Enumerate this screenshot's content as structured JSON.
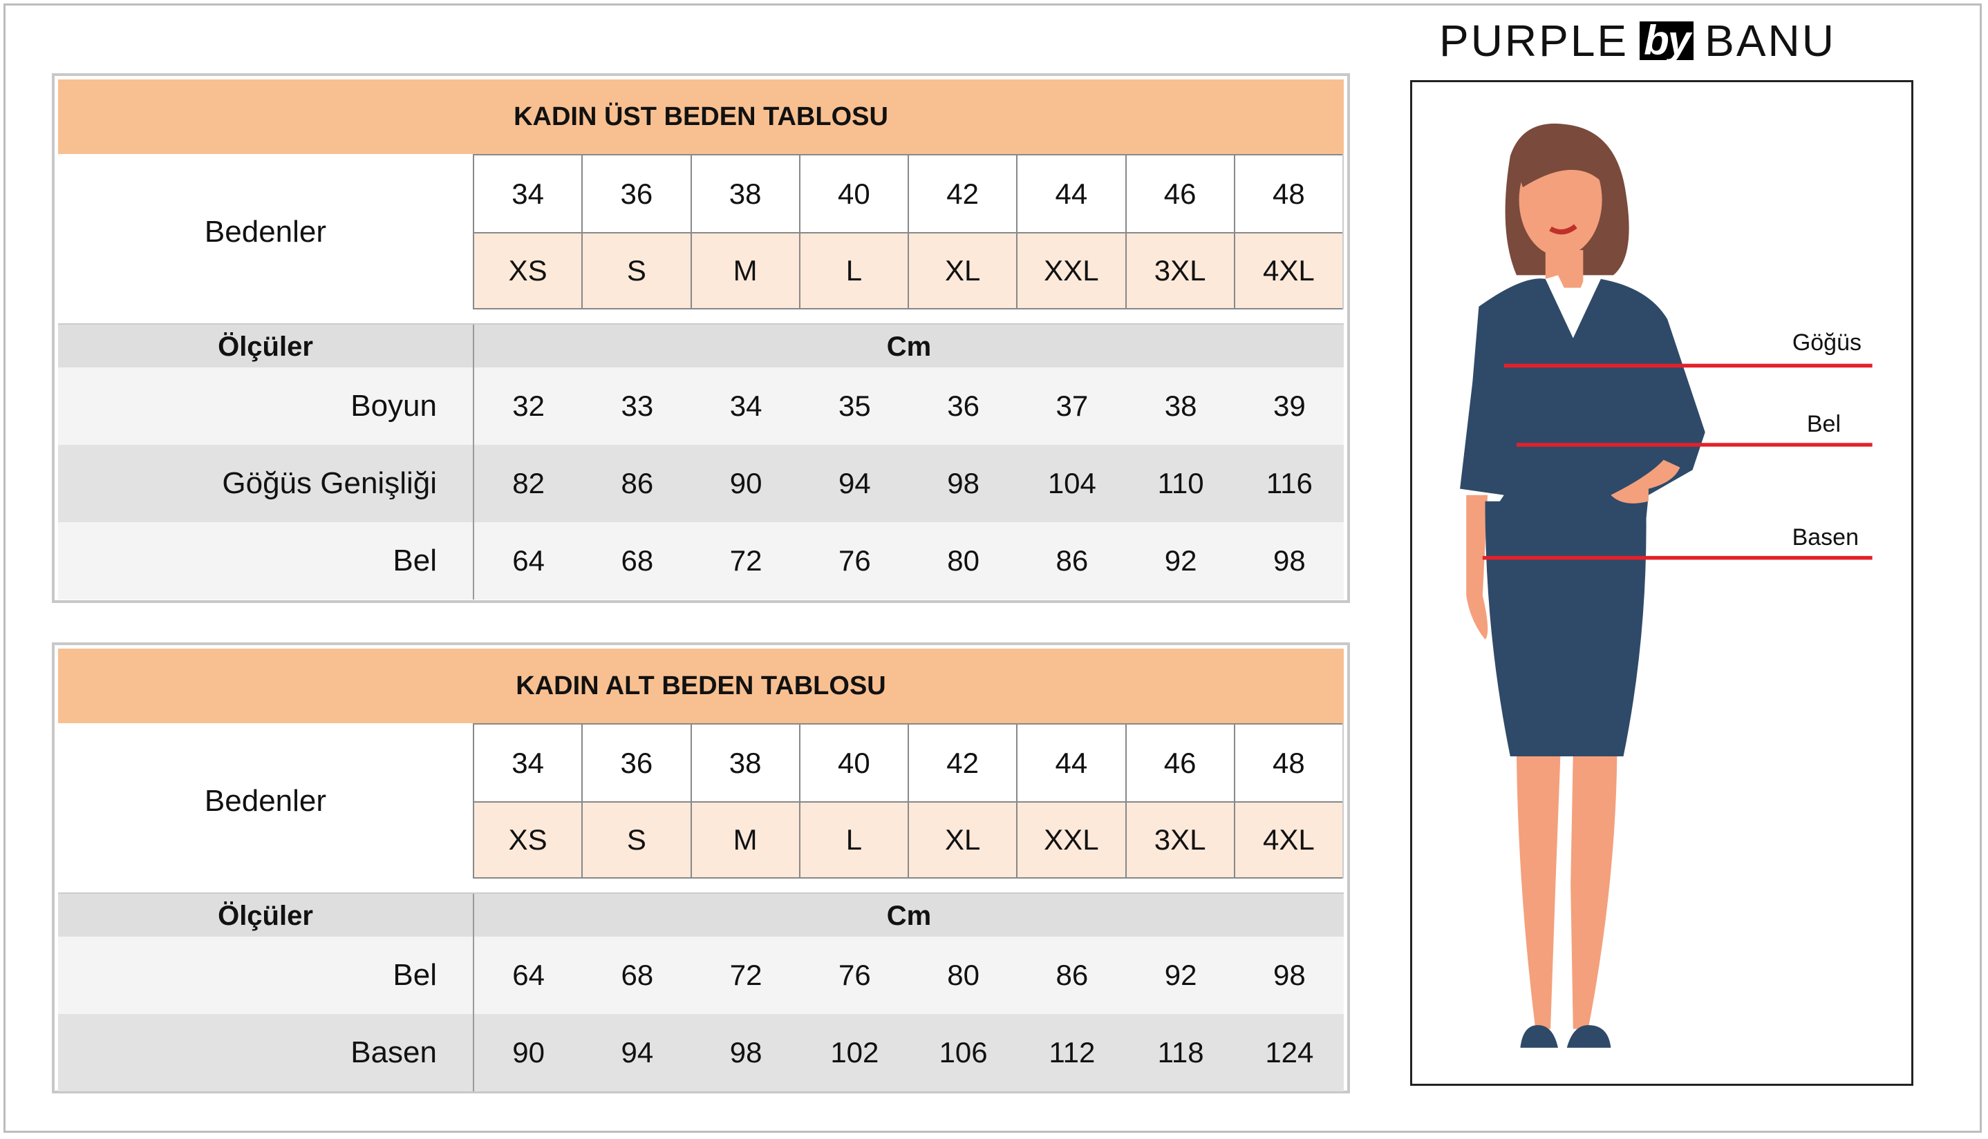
{
  "brand": {
    "left": "PURPLE",
    "mid": "by",
    "right": "BANU"
  },
  "upper_table": {
    "title": "KADIN ÜST BEDEN TABLOSU",
    "sizes_label": "Bedenler",
    "numeric_sizes": [
      "34",
      "36",
      "38",
      "40",
      "42",
      "44",
      "46",
      "48"
    ],
    "letter_sizes": [
      "XS",
      "S",
      "M",
      "L",
      "XL",
      "XXL",
      "3XL",
      "4XL"
    ],
    "measures_label": "Ölçüler",
    "unit": "Cm",
    "rows": [
      {
        "label": "Boyun",
        "values": [
          "32",
          "33",
          "34",
          "35",
          "36",
          "37",
          "38",
          "39"
        ]
      },
      {
        "label": "Göğüs Genişliği",
        "values": [
          "82",
          "86",
          "90",
          "94",
          "98",
          "104",
          "110",
          "116"
        ]
      },
      {
        "label": "Bel",
        "values": [
          "64",
          "68",
          "72",
          "76",
          "80",
          "86",
          "92",
          "98"
        ]
      }
    ]
  },
  "lower_table": {
    "title": "KADIN ALT BEDEN TABLOSU",
    "sizes_label": "Bedenler",
    "numeric_sizes": [
      "34",
      "36",
      "38",
      "40",
      "42",
      "44",
      "46",
      "48"
    ],
    "letter_sizes": [
      "XS",
      "S",
      "M",
      "L",
      "XL",
      "XXL",
      "3XL",
      "4XL"
    ],
    "measures_label": "Ölçüler",
    "unit": "Cm",
    "rows": [
      {
        "label": "Bel",
        "values": [
          "64",
          "68",
          "72",
          "76",
          "80",
          "86",
          "92",
          "98"
        ]
      },
      {
        "label": "Basen",
        "values": [
          "90",
          "94",
          "98",
          "102",
          "106",
          "112",
          "118",
          "124"
        ]
      }
    ]
  },
  "figure": {
    "labels": {
      "chest": "Göğüs",
      "waist": "Bel",
      "hip": "Basen"
    },
    "colors": {
      "line": "#e4202a",
      "suit": "#2f4a68",
      "skin": "#f4a07c",
      "hair": "#7a4a3c"
    }
  },
  "colors": {
    "header": "#f8c091",
    "letter_row": "#fde9da",
    "measure_header": "#dedede"
  }
}
